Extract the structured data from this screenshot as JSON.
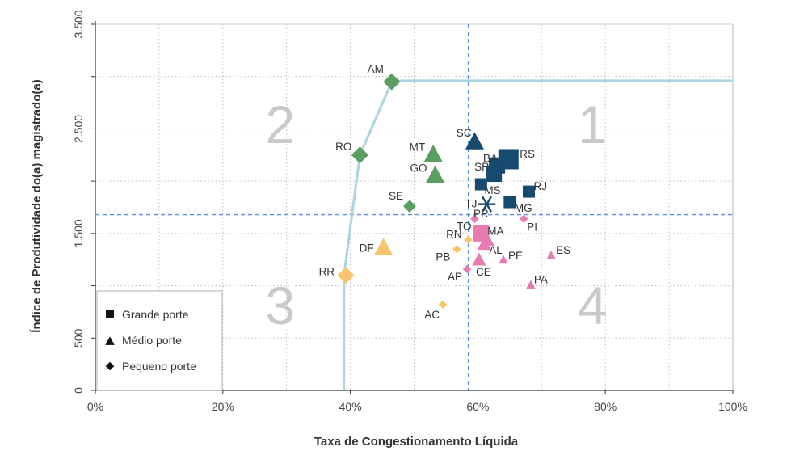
{
  "chart_data": {
    "type": "scatter",
    "xlabel": "Taxa de Congestionamento Líquida",
    "ylabel": "Índice de Produtividade do(a) magistrado(a)",
    "xlim": [
      0,
      1
    ],
    "ylim": [
      0,
      3500
    ],
    "x_ticks": [
      {
        "value": 0,
        "label": "0%"
      },
      {
        "value": 0.2,
        "label": "20%"
      },
      {
        "value": 0.4,
        "label": "40%"
      },
      {
        "value": 0.6,
        "label": "60%"
      },
      {
        "value": 0.8,
        "label": "80%"
      },
      {
        "value": 1.0,
        "label": "100%"
      }
    ],
    "y_ticks": [
      {
        "value": 0,
        "label": "0"
      },
      {
        "value": 500,
        "label": "500"
      },
      {
        "value": 1500,
        "label": "1.500"
      },
      {
        "value": 2500,
        "label": "2.500"
      },
      {
        "value": 3500,
        "label": "3.500"
      }
    ],
    "grid": true,
    "reference_lines": {
      "x": 0.585,
      "y": 1680
    },
    "frontier": [
      {
        "x": 0.39,
        "y": 0
      },
      {
        "x": 0.39,
        "y": 1100
      },
      {
        "x": 0.415,
        "y": 2250
      },
      {
        "x": 0.465,
        "y": 2950
      },
      {
        "x": 0.48,
        "y": 2960
      },
      {
        "x": 1.0,
        "y": 2960
      }
    ],
    "quadrants": [
      {
        "label": "1",
        "x": 0.78,
        "y": 2550
      },
      {
        "label": "2",
        "x": 0.29,
        "y": 2550
      },
      {
        "label": "3",
        "x": 0.29,
        "y": 820
      },
      {
        "label": "4",
        "x": 0.78,
        "y": 820
      }
    ],
    "legend": {
      "position": "bottom-left",
      "items": [
        {
          "label": "Grande porte",
          "shape": "square"
        },
        {
          "label": "Médio porte",
          "shape": "triangle"
        },
        {
          "label": "Pequeno porte",
          "shape": "diamond"
        }
      ]
    },
    "colors": {
      "green": "#5b9e62",
      "navy": "#164a6e",
      "pink": "#e87bb2",
      "yellow": "#f7c56e",
      "frontier": "#a9d4e0",
      "reference": "#5b8fd6",
      "grid": "#bdbdbd"
    },
    "points": [
      {
        "label": "AM",
        "x": 0.465,
        "y": 2950,
        "shape": "diamond",
        "color": "green",
        "size": "l"
      },
      {
        "label": "RO",
        "x": 0.415,
        "y": 2250,
        "shape": "diamond",
        "color": "green",
        "size": "l"
      },
      {
        "label": "MT",
        "x": 0.53,
        "y": 2260,
        "shape": "triangle",
        "color": "green",
        "size": "l"
      },
      {
        "label": "GO",
        "x": 0.533,
        "y": 2060,
        "shape": "triangle",
        "color": "green",
        "size": "l"
      },
      {
        "label": "SE",
        "x": 0.493,
        "y": 1760,
        "shape": "diamond",
        "color": "green",
        "size": "m"
      },
      {
        "label": "SC",
        "x": 0.595,
        "y": 2380,
        "shape": "triangle",
        "color": "navy",
        "size": "l"
      },
      {
        "label": "RS",
        "x": 0.648,
        "y": 2210,
        "shape": "square",
        "color": "navy",
        "size": "xl"
      },
      {
        "label": "BA",
        "x": 0.63,
        "y": 2150,
        "shape": "square",
        "color": "navy",
        "size": "l"
      },
      {
        "label": "SP",
        "x": 0.625,
        "y": 2070,
        "shape": "square",
        "color": "navy",
        "size": "l"
      },
      {
        "label": "MS",
        "x": 0.605,
        "y": 1970,
        "shape": "square",
        "color": "navy",
        "size": "m"
      },
      {
        "label": "RJ",
        "x": 0.68,
        "y": 1900,
        "shape": "square",
        "color": "navy",
        "size": "m"
      },
      {
        "label": "MG",
        "x": 0.65,
        "y": 1800,
        "shape": "square",
        "color": "navy",
        "size": "m"
      },
      {
        "label": "TJ",
        "x": 0.614,
        "y": 1780,
        "shape": "asterisk",
        "color": "navy",
        "size": "l"
      },
      {
        "label": "TO",
        "x": 0.595,
        "y": 1640,
        "shape": "diamond",
        "color": "pink",
        "size": "s"
      },
      {
        "label": "PR",
        "x": 0.605,
        "y": 1500,
        "shape": "square",
        "color": "pink",
        "size": "l"
      },
      {
        "label": "PI",
        "x": 0.672,
        "y": 1640,
        "shape": "diamond",
        "color": "pink",
        "size": "s"
      },
      {
        "label": "MA",
        "x": 0.615,
        "y": 1440,
        "shape": "triangle",
        "color": "pink",
        "size": "m"
      },
      {
        "label": "AL",
        "x": 0.61,
        "y": 1400,
        "shape": "triangle",
        "color": "pink",
        "size": "m"
      },
      {
        "label": "PE",
        "x": 0.64,
        "y": 1250,
        "shape": "triangle",
        "color": "pink",
        "size": "s"
      },
      {
        "label": "CE",
        "x": 0.602,
        "y": 1250,
        "shape": "triangle",
        "color": "pink",
        "size": "m"
      },
      {
        "label": "ES",
        "x": 0.715,
        "y": 1290,
        "shape": "triangle",
        "color": "pink",
        "size": "s"
      },
      {
        "label": "PA",
        "x": 0.683,
        "y": 1010,
        "shape": "triangle",
        "color": "pink",
        "size": "s"
      },
      {
        "label": "AP",
        "x": 0.583,
        "y": 1160,
        "shape": "diamond",
        "color": "pink",
        "size": "s"
      },
      {
        "label": "RN",
        "x": 0.585,
        "y": 1440,
        "shape": "diamond",
        "color": "yellow",
        "size": "s"
      },
      {
        "label": "PB",
        "x": 0.567,
        "y": 1350,
        "shape": "diamond",
        "color": "yellow",
        "size": "s"
      },
      {
        "label": "DF",
        "x": 0.452,
        "y": 1370,
        "shape": "triangle",
        "color": "yellow",
        "size": "l"
      },
      {
        "label": "RR",
        "x": 0.393,
        "y": 1100,
        "shape": "diamond",
        "color": "yellow",
        "size": "l"
      },
      {
        "label": "AC",
        "x": 0.545,
        "y": 820,
        "shape": "diamond",
        "color": "yellow",
        "size": "s"
      }
    ]
  }
}
